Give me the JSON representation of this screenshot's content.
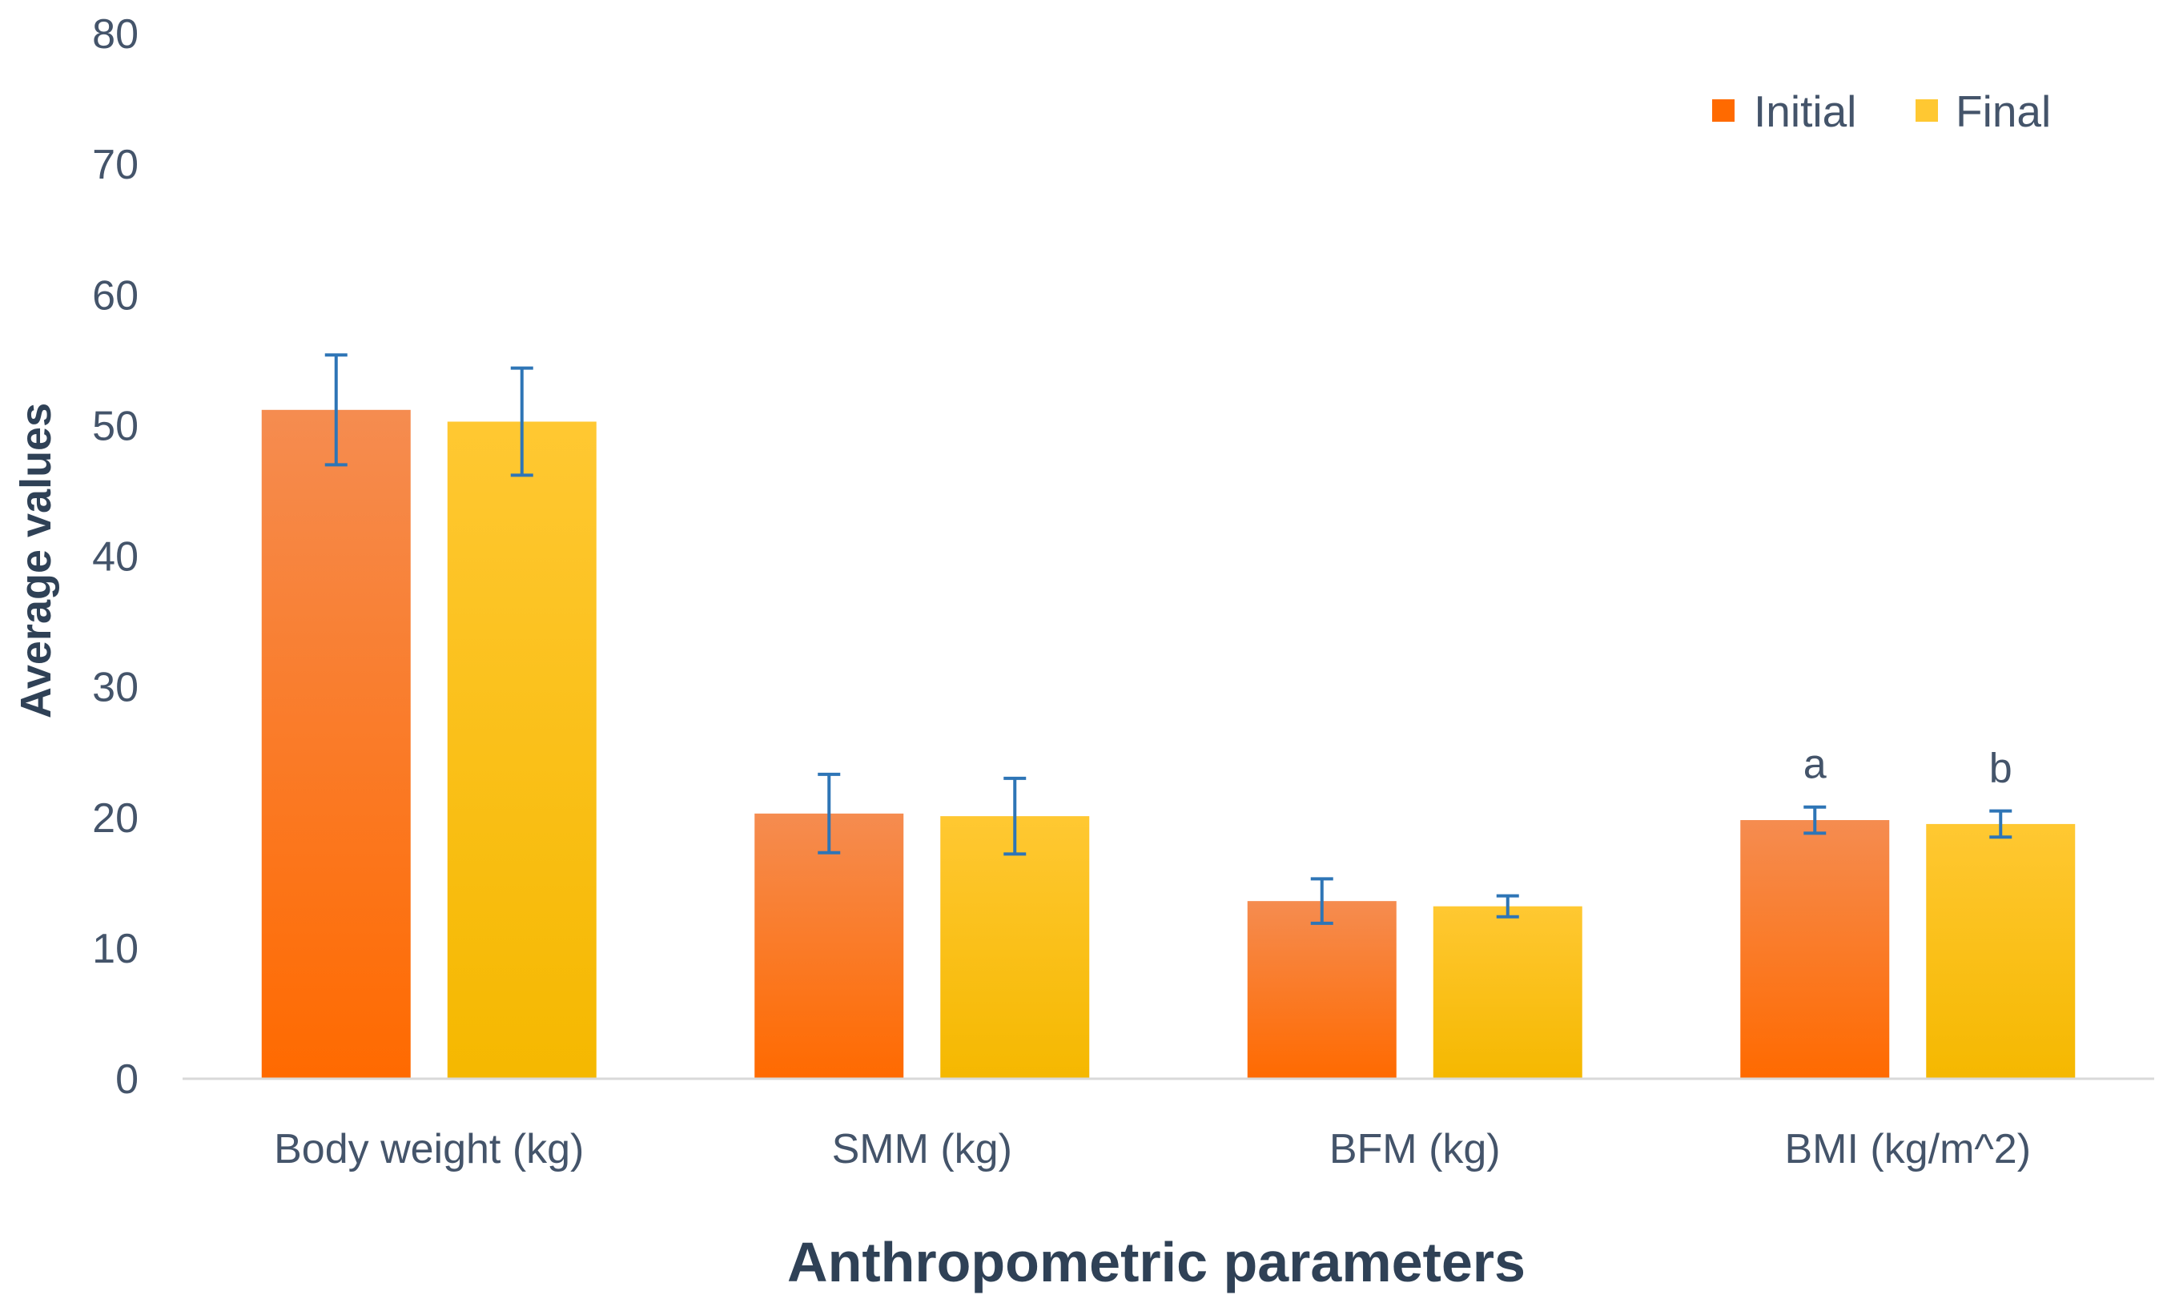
{
  "chart_data": {
    "type": "bar",
    "title": "",
    "xlabel": "Anthropometric parameters",
    "ylabel": "Average values",
    "ylim": [
      0,
      80
    ],
    "yticks": [
      0,
      10,
      20,
      30,
      40,
      50,
      60,
      70,
      80
    ],
    "grid": false,
    "legend_position": "top-right",
    "categories": [
      "Body weight (kg)",
      "SMM (kg)",
      "BFM (kg)",
      "BMI (kg/m^2)"
    ],
    "series": [
      {
        "name": "Initial",
        "values": [
          51.2,
          20.3,
          13.6,
          19.8
        ],
        "errors": [
          4.2,
          3.0,
          1.7,
          1.0
        ],
        "annotations": [
          "",
          "",
          "",
          "a"
        ],
        "color_top": "#f58c50",
        "color_bottom": "#ff6a00"
      },
      {
        "name": "Final",
        "values": [
          50.3,
          20.1,
          13.2,
          19.5
        ],
        "errors": [
          4.1,
          2.9,
          0.8,
          1.0
        ],
        "annotations": [
          "",
          "",
          "",
          "b"
        ],
        "color_top": "#ffc832",
        "color_bottom": "#f5b800"
      }
    ],
    "colors": {
      "error_bar": "#2e75b6",
      "axis": "#d9d9d9",
      "text": "#44546a",
      "title_text": "#2f4156"
    }
  }
}
